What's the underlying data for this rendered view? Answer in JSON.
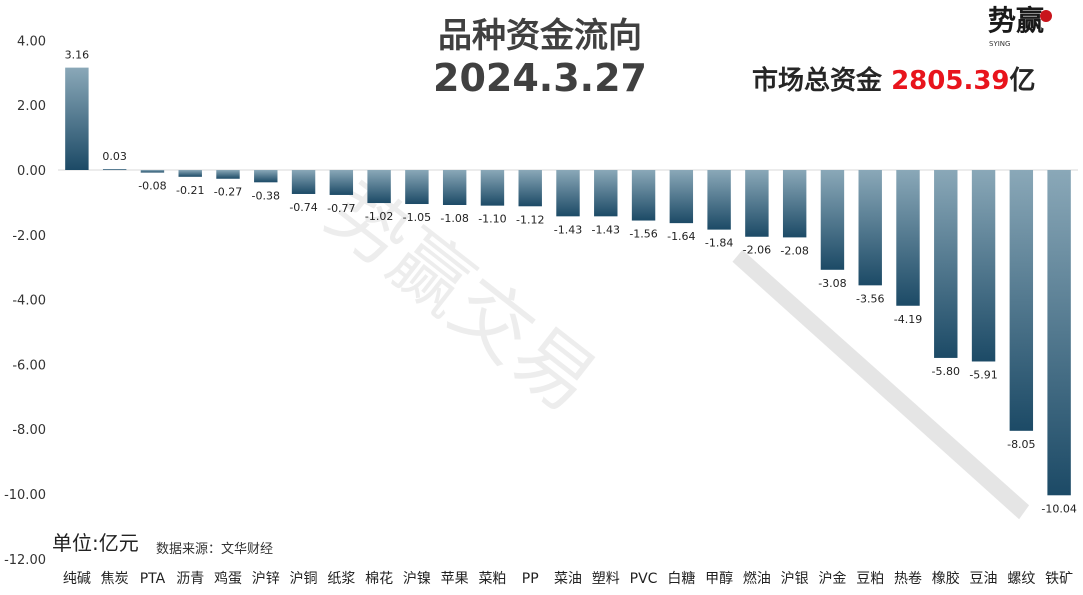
{
  "header": {
    "title": "品种资金流向",
    "date": "2024.3.27",
    "total_label": "市场总资金",
    "total_value": "2805.39",
    "total_suffix": "亿"
  },
  "footer": {
    "unit": "单位:亿元",
    "source": "数据来源：文华财经"
  },
  "logo": {
    "text": "势赢",
    "sub": "SYING"
  },
  "watermark": "势赢交易",
  "colors": {
    "bar_top": "#8aa8b8",
    "bar_bottom": "#1c4a66",
    "axis": "#d9d9d9",
    "accent": "#e8141c"
  },
  "chart_data": {
    "type": "bar",
    "categories": [
      "纯碱",
      "焦炭",
      "PTA",
      "沥青",
      "鸡蛋",
      "沪锌",
      "沪铜",
      "纸浆",
      "棉花",
      "沪镍",
      "苹果",
      "菜粕",
      "PP",
      "菜油",
      "塑料",
      "PVC",
      "白糖",
      "甲醇",
      "燃油",
      "沪银",
      "沪金",
      "豆粕",
      "热卷",
      "橡胶",
      "豆油",
      "螺纹",
      "铁矿"
    ],
    "values": [
      3.16,
      0.03,
      -0.08,
      -0.21,
      -0.27,
      -0.38,
      -0.74,
      -0.77,
      -1.02,
      -1.05,
      -1.08,
      -1.1,
      -1.12,
      -1.43,
      -1.43,
      -1.56,
      -1.64,
      -1.84,
      -2.06,
      -2.08,
      -3.08,
      -3.56,
      -4.19,
      -5.8,
      -5.91,
      -8.05,
      -10.04
    ],
    "labels": [
      "3.16",
      "0.03",
      "-0.08",
      "-0.21",
      "-0.27",
      "-0.38",
      "-0.74",
      "-0.77",
      "-1.02",
      "-1.05",
      "-1.08",
      "-1.10",
      "-1.12",
      "-1.43",
      "-1.43",
      "-1.56",
      "-1.64",
      "-1.84",
      "-2.06",
      "-2.08",
      "-3.08",
      "-3.56",
      "-4.19",
      "-5.80",
      "-5.91",
      "-8.05",
      "-10.04"
    ],
    "ylim": [
      -12,
      4
    ],
    "yticks": [
      "4.00",
      "2.00",
      "0.00",
      "-2.00",
      "-4.00",
      "-6.00",
      "-8.00",
      "-10.00",
      "-12.00"
    ],
    "ytick_values": [
      4,
      2,
      0,
      -2,
      -4,
      -6,
      -8,
      -10,
      -12
    ],
    "grid": false,
    "legend": "none"
  }
}
